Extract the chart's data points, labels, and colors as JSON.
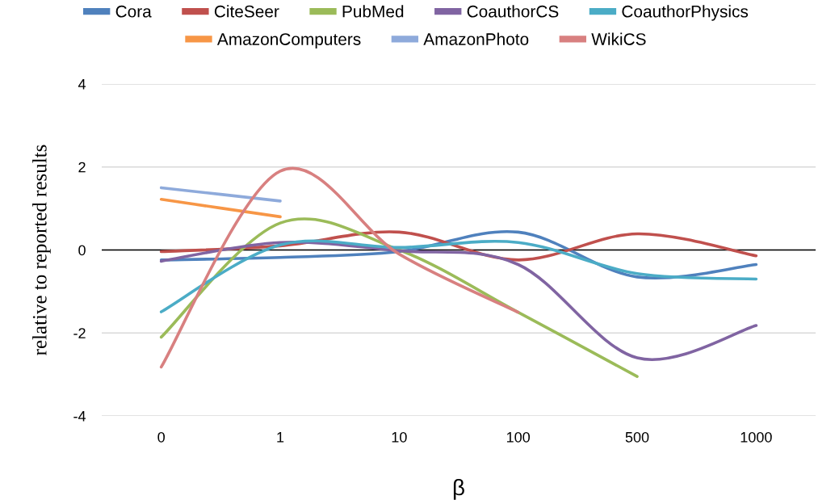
{
  "chart_data": {
    "type": "line",
    "xlabel": "β",
    "ylabel": "relative to reported results",
    "categories": [
      "0",
      "1",
      "10",
      "100",
      "500",
      "1000"
    ],
    "ylim": [
      -4,
      4
    ],
    "yticks": [
      {
        "value": 4,
        "label": "4"
      },
      {
        "value": 2,
        "label": "2"
      },
      {
        "value": 0,
        "label": "0"
      },
      {
        "value": -2,
        "label": "-2"
      },
      {
        "value": -4,
        "label": "-4"
      }
    ],
    "grid": "y",
    "legend": "top",
    "marker": "none",
    "line_style": "solid",
    "ref_lines": [
      {
        "axis": "y",
        "value": 0,
        "color": "#000000"
      }
    ],
    "series": [
      {
        "name": "Cora",
        "color": "#4f81bd",
        "values": [
          -0.24,
          -0.18,
          -0.04,
          0.43,
          -0.65,
          -0.35
        ]
      },
      {
        "name": "CiteSeer",
        "color": "#c0504d",
        "values": [
          -0.04,
          0.1,
          0.43,
          -0.24,
          0.39,
          -0.14
        ]
      },
      {
        "name": "PubMed",
        "color": "#9bbb59",
        "values": [
          -2.1,
          0.65,
          0.0,
          -1.5,
          -3.05,
          null
        ]
      },
      {
        "name": "CoauthorCS",
        "color": "#8064a2",
        "values": [
          -0.27,
          0.18,
          -0.02,
          -0.35,
          -2.6,
          -1.82
        ]
      },
      {
        "name": "CoauthorPhysics",
        "color": "#4bacc6",
        "values": [
          -1.49,
          0.12,
          0.06,
          0.18,
          -0.57,
          -0.7
        ]
      },
      {
        "name": "AmazonComputers",
        "color": "#f79646",
        "values": [
          1.22,
          0.8,
          null,
          null,
          null,
          null
        ]
      },
      {
        "name": "AmazonPhoto",
        "color": "#8eaadb",
        "values": [
          1.5,
          1.18,
          null,
          null,
          null,
          null
        ]
      },
      {
        "name": "WikiCS",
        "color": "#d88080",
        "values": [
          -2.82,
          1.9,
          -0.1,
          -1.5,
          null,
          null
        ]
      }
    ]
  }
}
